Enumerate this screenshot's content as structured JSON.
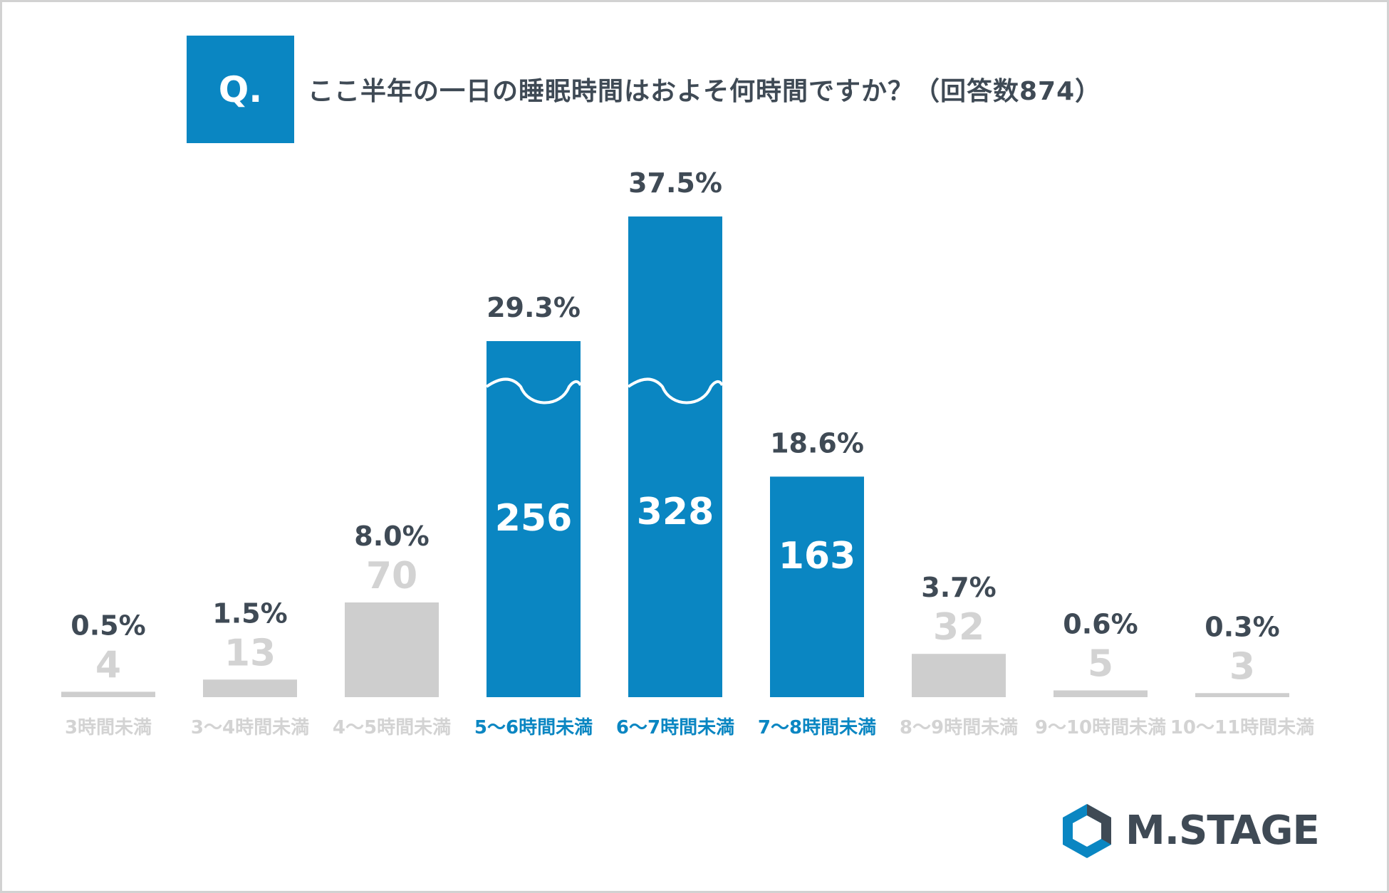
{
  "question": {
    "badge": "Q.",
    "text": "ここ半年の一日の睡眠時間はおよそ何時間ですか？（回答数874）"
  },
  "brand": {
    "name": "M.STAGE"
  },
  "colors": {
    "highlight": "#0a86c2",
    "muted_bar": "#cecece",
    "muted_text": "#d3d3d3",
    "label_dark": "#3f4a55",
    "white": "#ffffff"
  },
  "chart_data": {
    "type": "bar",
    "title": "ここ半年の一日の睡眠時間はおよそ何時間ですか？（回答数874）",
    "categories": [
      "3時間未満",
      "3〜4時間未満",
      "4〜5時間未満",
      "5〜6時間未満",
      "6〜7時間未満",
      "7〜8時間未満",
      "8〜9時間未満",
      "9〜10時間未満",
      "10〜11時間未満"
    ],
    "values": [
      4,
      13,
      70,
      256,
      328,
      163,
      32,
      5,
      3
    ],
    "percentages": [
      "0.5%",
      "1.5%",
      "8.0%",
      "29.3%",
      "37.5%",
      "18.6%",
      "3.7%",
      "0.6%",
      "0.3%"
    ],
    "highlighted": [
      false,
      false,
      false,
      true,
      true,
      true,
      false,
      false,
      false
    ],
    "axis_break": [
      false,
      false,
      false,
      true,
      true,
      false,
      false,
      false,
      false
    ],
    "total": 874,
    "xlabel": "",
    "ylabel": "",
    "ylim": [
      0,
      328
    ]
  }
}
